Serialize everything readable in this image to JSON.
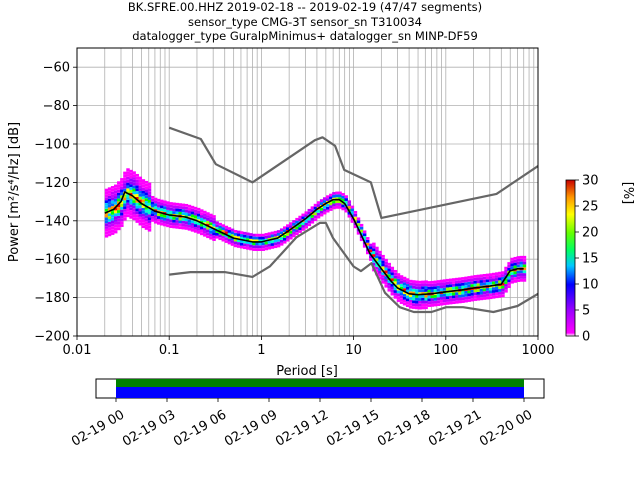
{
  "title": {
    "line1": "BK.SFRE.00.HHZ   2019-02-18 -- 2019-02-19  (47/47 segments)",
    "line2": "sensor_type CMG-3T sensor_sn T310034",
    "line3": "datalogger_type GuralpMinimus+ datalogger_sn MINP-DF59"
  },
  "chart_data": {
    "type": "heatmap",
    "xlabel": "Period [s]",
    "ylabel": "Power [m²/s⁴/Hz] [dB]",
    "xscale": "log",
    "xlim": [
      0.01,
      1000
    ],
    "ylim": [
      -200,
      -50
    ],
    "grid": true,
    "xticks": [
      0.01,
      0.1,
      1,
      10,
      100,
      1000
    ],
    "xtick_labels": [
      "0.01",
      "0.1",
      "1",
      "10",
      "100",
      "1000"
    ],
    "yticks": [
      -200,
      -180,
      -160,
      -140,
      -120,
      -100,
      -80,
      -60
    ],
    "ytick_labels": [
      "−200",
      "−180",
      "−160",
      "−140",
      "−120",
      "−100",
      "−80",
      "−60"
    ],
    "colorbar": {
      "label": "[%]",
      "min": 0,
      "max": 30,
      "ticks": [
        "0",
        "5",
        "10",
        "15",
        "20",
        "25",
        "30"
      ]
    },
    "series": [
      {
        "role": "noise-model-high",
        "color": "#666666",
        "x": [
          0.1,
          0.22,
          0.32,
          0.8,
          3.8,
          4.6,
          6.3,
          7.9,
          15.4,
          20,
          354.8,
          1000
        ],
        "y": [
          -91.5,
          -97.4,
          -110.5,
          -120,
          -98,
          -96.5,
          -101,
          -113.5,
          -120,
          -138.5,
          -126,
          -111.5
        ]
      },
      {
        "role": "noise-model-low",
        "color": "#666666",
        "x": [
          0.1,
          0.17,
          0.4,
          0.8,
          1.24,
          2.4,
          4.3,
          5,
          6,
          10,
          12,
          15.6,
          21.9,
          31.6,
          45,
          70,
          101,
          154,
          328,
          600,
          1000
        ],
        "y": [
          -168,
          -166.7,
          -166.7,
          -169.2,
          -163.7,
          -148.6,
          -141.1,
          -141.1,
          -149,
          -163.8,
          -166.2,
          -162.1,
          -177.5,
          -185,
          -187.5,
          -187.5,
          -185,
          -185,
          -187.5,
          -184.4,
          -178
        ]
      },
      {
        "role": "mean-psd",
        "color": "#000000",
        "x": [
          0.02,
          0.025,
          0.03,
          0.033,
          0.04,
          0.05,
          0.07,
          0.1,
          0.15,
          0.2,
          0.3,
          0.5,
          0.8,
          1,
          1.5,
          2,
          3,
          4,
          5,
          6,
          7,
          8,
          10,
          12,
          15,
          20,
          25,
          30,
          40,
          50,
          70,
          100,
          150,
          200,
          300,
          400,
          500,
          600,
          700
        ],
        "y": [
          -136,
          -134,
          -130,
          -125,
          -127,
          -131,
          -135,
          -137,
          -138,
          -140,
          -144,
          -149,
          -151,
          -151,
          -149,
          -145,
          -139,
          -134,
          -131,
          -129,
          -129,
          -131,
          -139,
          -147,
          -157,
          -165,
          -171,
          -175,
          -178,
          -178.5,
          -178,
          -177,
          -176,
          -175,
          -174,
          -173,
          -166,
          -165,
          -165
        ]
      }
    ]
  },
  "timeline": {
    "tick_labels": [
      "02-19 00",
      "02-19 03",
      "02-19 06",
      "02-19 09",
      "02-19 12",
      "02-19 15",
      "02-19 18",
      "02-19 21",
      "02-20 00"
    ],
    "coverage_color": "#008000",
    "data_color": "#0000ff",
    "coverage_fraction": 1.0
  }
}
